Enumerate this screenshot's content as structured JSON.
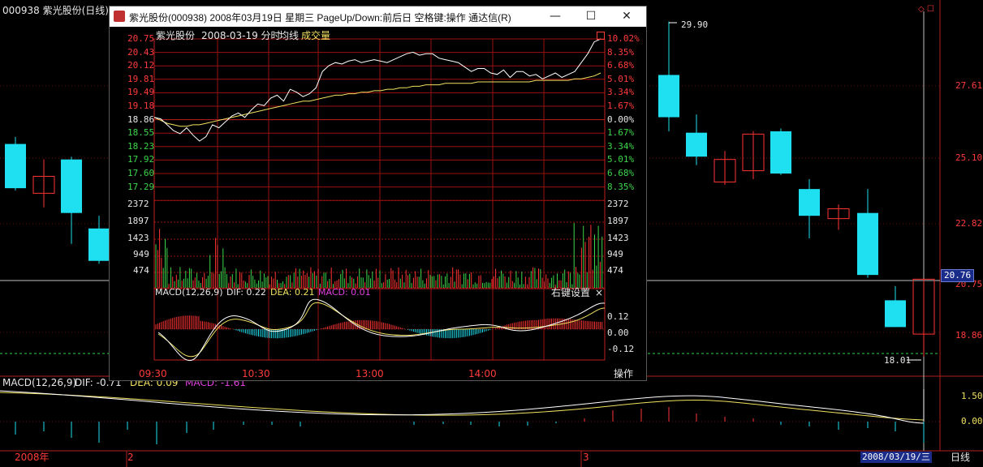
{
  "main": {
    "title": "000938 紫光股份(日线)",
    "price_labels": [
      "29.90",
      "27.61",
      "25.10",
      "22.82",
      "20.76",
      "20.75",
      "18.86",
      "18.01"
    ],
    "crosshair_value": "20.76",
    "macd_header": {
      "name": "MACD(12,26,9)",
      "dif": "DIF: -0.71",
      "dea": "DEA: 0.09",
      "macd": "MACD: -1.61"
    },
    "macd_axis": [
      "1.50",
      "0.00"
    ],
    "date_labels": {
      "year": "2008年",
      "m2": "2",
      "m3": "3"
    },
    "selected_date": "2008/03/19/三",
    "period_button": "日线",
    "candles": [
      {
        "o": 25.55,
        "c": 23.98,
        "h": 25.8,
        "l": 23.9
      },
      {
        "o": 23.8,
        "c": 24.4,
        "h": 25.0,
        "l": 23.3
      },
      {
        "o": 25.0,
        "c": 23.1,
        "h": 25.1,
        "l": 22.0
      },
      {
        "o": 22.55,
        "c": 21.4,
        "h": 23.0,
        "l": 21.3
      },
      {
        "o": 28.0,
        "c": 26.5,
        "h": 29.9,
        "l": 26.0
      },
      {
        "o": 25.95,
        "c": 25.1,
        "h": 26.6,
        "l": 24.8
      },
      {
        "o": 24.2,
        "c": 25.0,
        "h": 25.3,
        "l": 24.1
      },
      {
        "o": 24.6,
        "c": 25.9,
        "h": 26.0,
        "l": 24.3
      },
      {
        "o": 26.0,
        "c": 24.5,
        "h": 26.1,
        "l": 24.45
      },
      {
        "o": 23.95,
        "c": 23.0,
        "h": 24.3,
        "l": 22.2
      },
      {
        "o": 22.9,
        "c": 23.25,
        "h": 23.4,
        "l": 22.5
      },
      {
        "o": 23.1,
        "c": 20.9,
        "h": 23.95,
        "l": 20.8
      },
      {
        "o": 20.0,
        "c": 19.05,
        "h": 20.5,
        "l": 19.05
      },
      {
        "o": 18.8,
        "c": 20.75,
        "h": 20.75,
        "l": 18.01
      }
    ]
  },
  "popup": {
    "window_title": "紫光股份(000938)  2008年03月19日 星期三 PageUp/Down:前后日 空格键:操作 通达信(R)",
    "btn_minimize": "—",
    "btn_maximize": "☐",
    "btn_close": "✕",
    "header": {
      "stock": "紫光股份",
      "date": "2008-03-19 分时",
      "avg": "均线",
      "vol": "成交量"
    },
    "left_prices": [
      "20.75",
      "20.43",
      "20.12",
      "19.81",
      "19.49",
      "19.18",
      "18.86",
      "18.55",
      "18.23",
      "17.92",
      "17.60",
      "17.29"
    ],
    "right_pcts": [
      "10.02%",
      "8.35%",
      "6.68%",
      "5.01%",
      "3.34%",
      "1.67%",
      "0.00%",
      "1.67%",
      "3.34%",
      "5.01%",
      "6.68%",
      "8.35%"
    ],
    "vol_labels": [
      "2372",
      "1897",
      "1423",
      "949",
      "474"
    ],
    "macd_header": {
      "name": "MACD(12,26,9)",
      "dif": "DIF: 0.22",
      "dea": "DEA: 0.21",
      "macd": "MACD: 0.01"
    },
    "right_click": "右键设置",
    "close_x": "×",
    "macd_axis": [
      "0.12",
      "0.00",
      "-0.12"
    ],
    "time_labels": [
      "09:30",
      "10:30",
      "13:00",
      "14:00"
    ],
    "action_button": "操作"
  },
  "colors": {
    "up": "#ff3333",
    "down": "#1fe0f0",
    "avg": "#f0e060",
    "bg": "#000000"
  }
}
